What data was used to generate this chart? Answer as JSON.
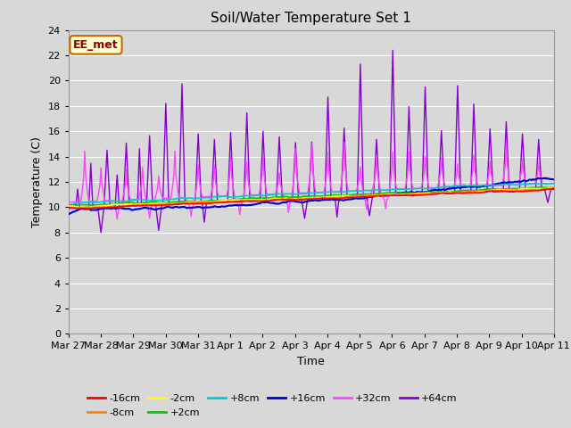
{
  "title": "Soil/Water Temperature Set 1",
  "xlabel": "Time",
  "ylabel": "Temperature (C)",
  "ylim": [
    0,
    24
  ],
  "yticks": [
    0,
    2,
    4,
    6,
    8,
    10,
    12,
    14,
    16,
    18,
    20,
    22,
    24
  ],
  "background_color": "#d8d8d8",
  "plot_bg_color": "#d8d8d8",
  "annotation_text": "EE_met",
  "annotation_bg": "#ffffcc",
  "annotation_border": "#cc6600",
  "series_colors": {
    "-16cm": "#ff0000",
    "-8cm": "#ff8800",
    "-2cm": "#ffff00",
    "+2cm": "#00cc00",
    "+8cm": "#00cccc",
    "+16cm": "#0000cc",
    "+32cm": "#ff44ff",
    "+64cm": "#8800cc"
  },
  "date_labels": [
    "Mar 27",
    "Mar 28",
    "Mar 29",
    "Mar 30",
    "Mar 31",
    "Apr 1",
    "Apr 2",
    "Apr 3",
    "Apr 4",
    "Apr 5",
    "Apr 6",
    "Apr 7",
    "Apr 8",
    "Apr 9",
    "Apr 10",
    "Apr 11"
  ],
  "n_points": 480
}
